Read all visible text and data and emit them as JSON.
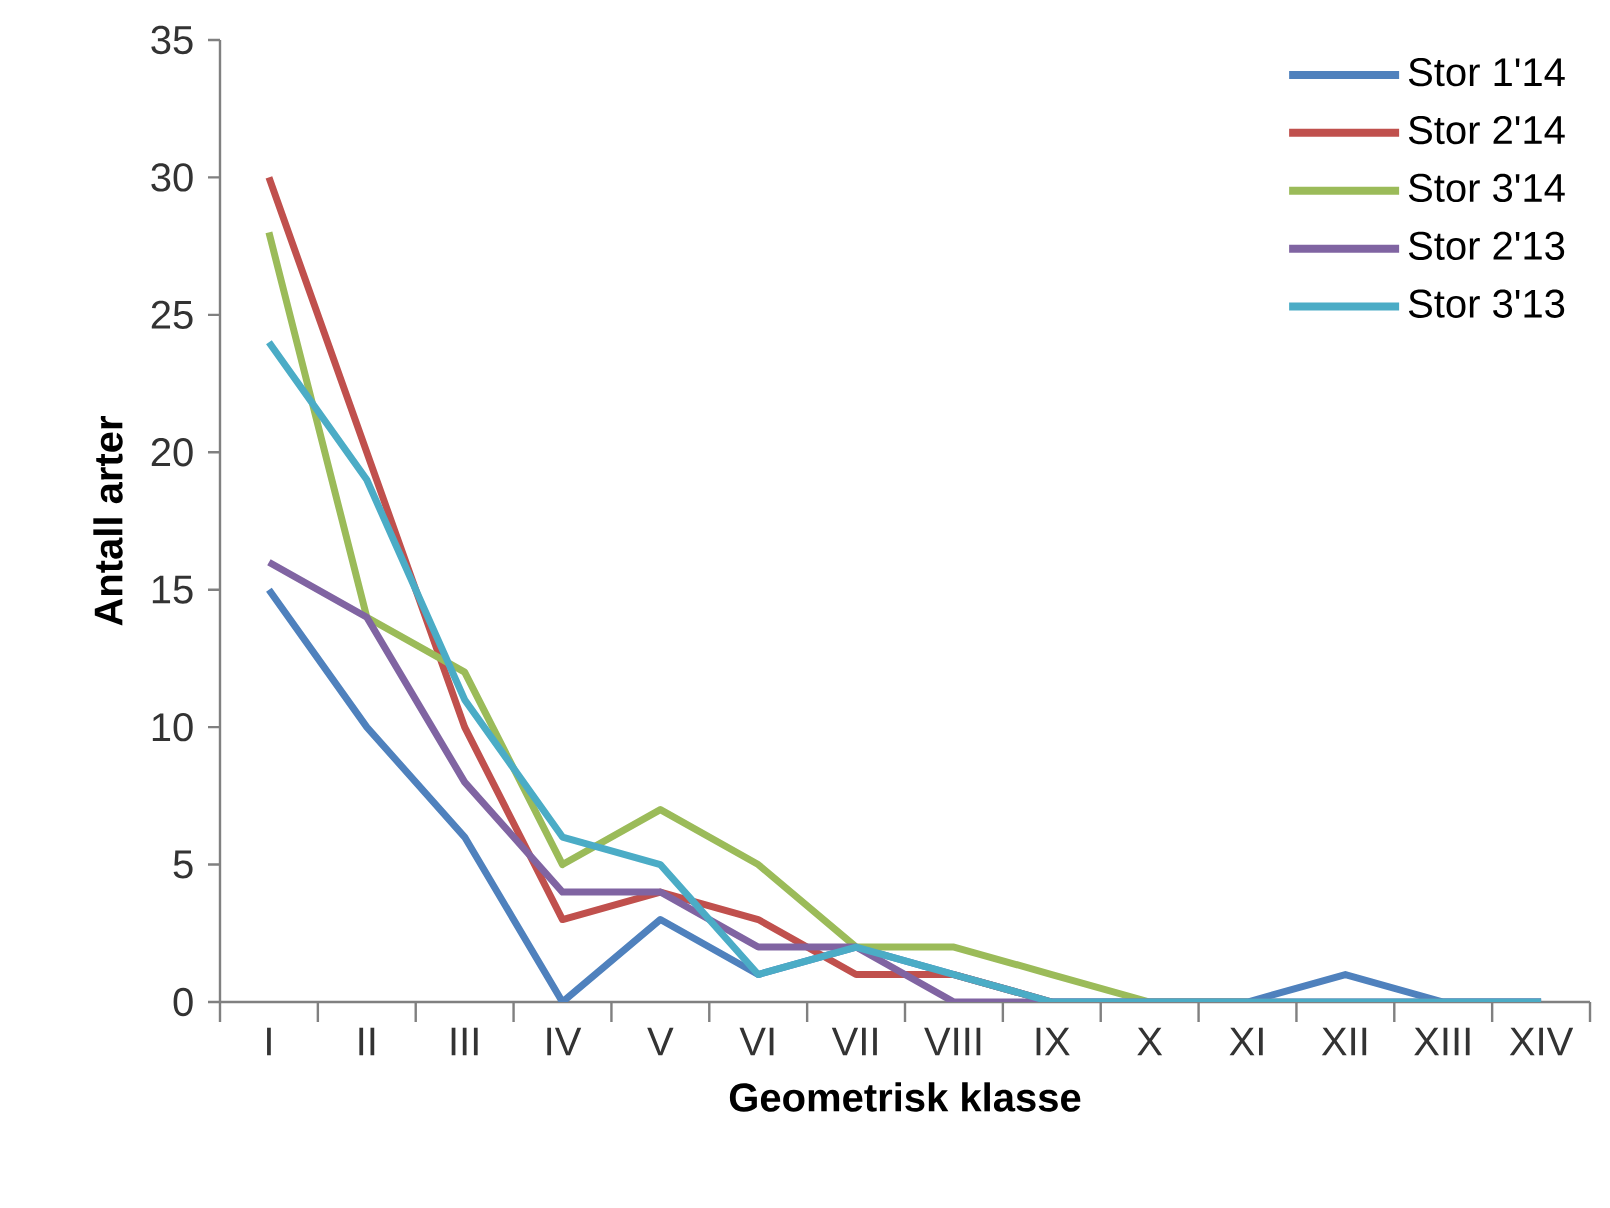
{
  "chart_data": {
    "type": "line",
    "xlabel": "Geometrisk klasse",
    "ylabel": "Antall arter",
    "categories": [
      "I",
      "II",
      "III",
      "IV",
      "V",
      "VI",
      "VII",
      "VIII",
      "IX",
      "X",
      "XI",
      "XII",
      "XIII",
      "XIV"
    ],
    "ylim": [
      0,
      35
    ],
    "yticks": [
      0,
      5,
      10,
      15,
      20,
      25,
      30,
      35
    ],
    "grid": false,
    "legend": "top right",
    "marker": "none",
    "line_style": "solid",
    "series": [
      {
        "name": "Stor 1'14",
        "color": "#4f81bd",
        "values": [
          15,
          10,
          6,
          0,
          3,
          1,
          2,
          1,
          0,
          0,
          0,
          1,
          0,
          0
        ]
      },
      {
        "name": "Stor 2'14",
        "color": "#c0504d",
        "values": [
          30,
          20,
          10,
          3,
          4,
          3,
          1,
          1,
          0,
          null,
          null,
          null,
          null,
          null
        ]
      },
      {
        "name": "Stor 3'14",
        "color": "#9bbb59",
        "values": [
          28,
          14,
          12,
          5,
          7,
          5,
          2,
          2,
          1,
          0,
          0,
          null,
          null,
          null
        ]
      },
      {
        "name": "Stor 2'13",
        "color": "#8064a2",
        "values": [
          16,
          14,
          8,
          4,
          4,
          2,
          2,
          0,
          0,
          0,
          0,
          0,
          0,
          0
        ]
      },
      {
        "name": "Stor 3'13",
        "color": "#4bacc6",
        "values": [
          24,
          19,
          11,
          6,
          5,
          1,
          2,
          1,
          0,
          0,
          0,
          0,
          0,
          0
        ]
      }
    ]
  }
}
